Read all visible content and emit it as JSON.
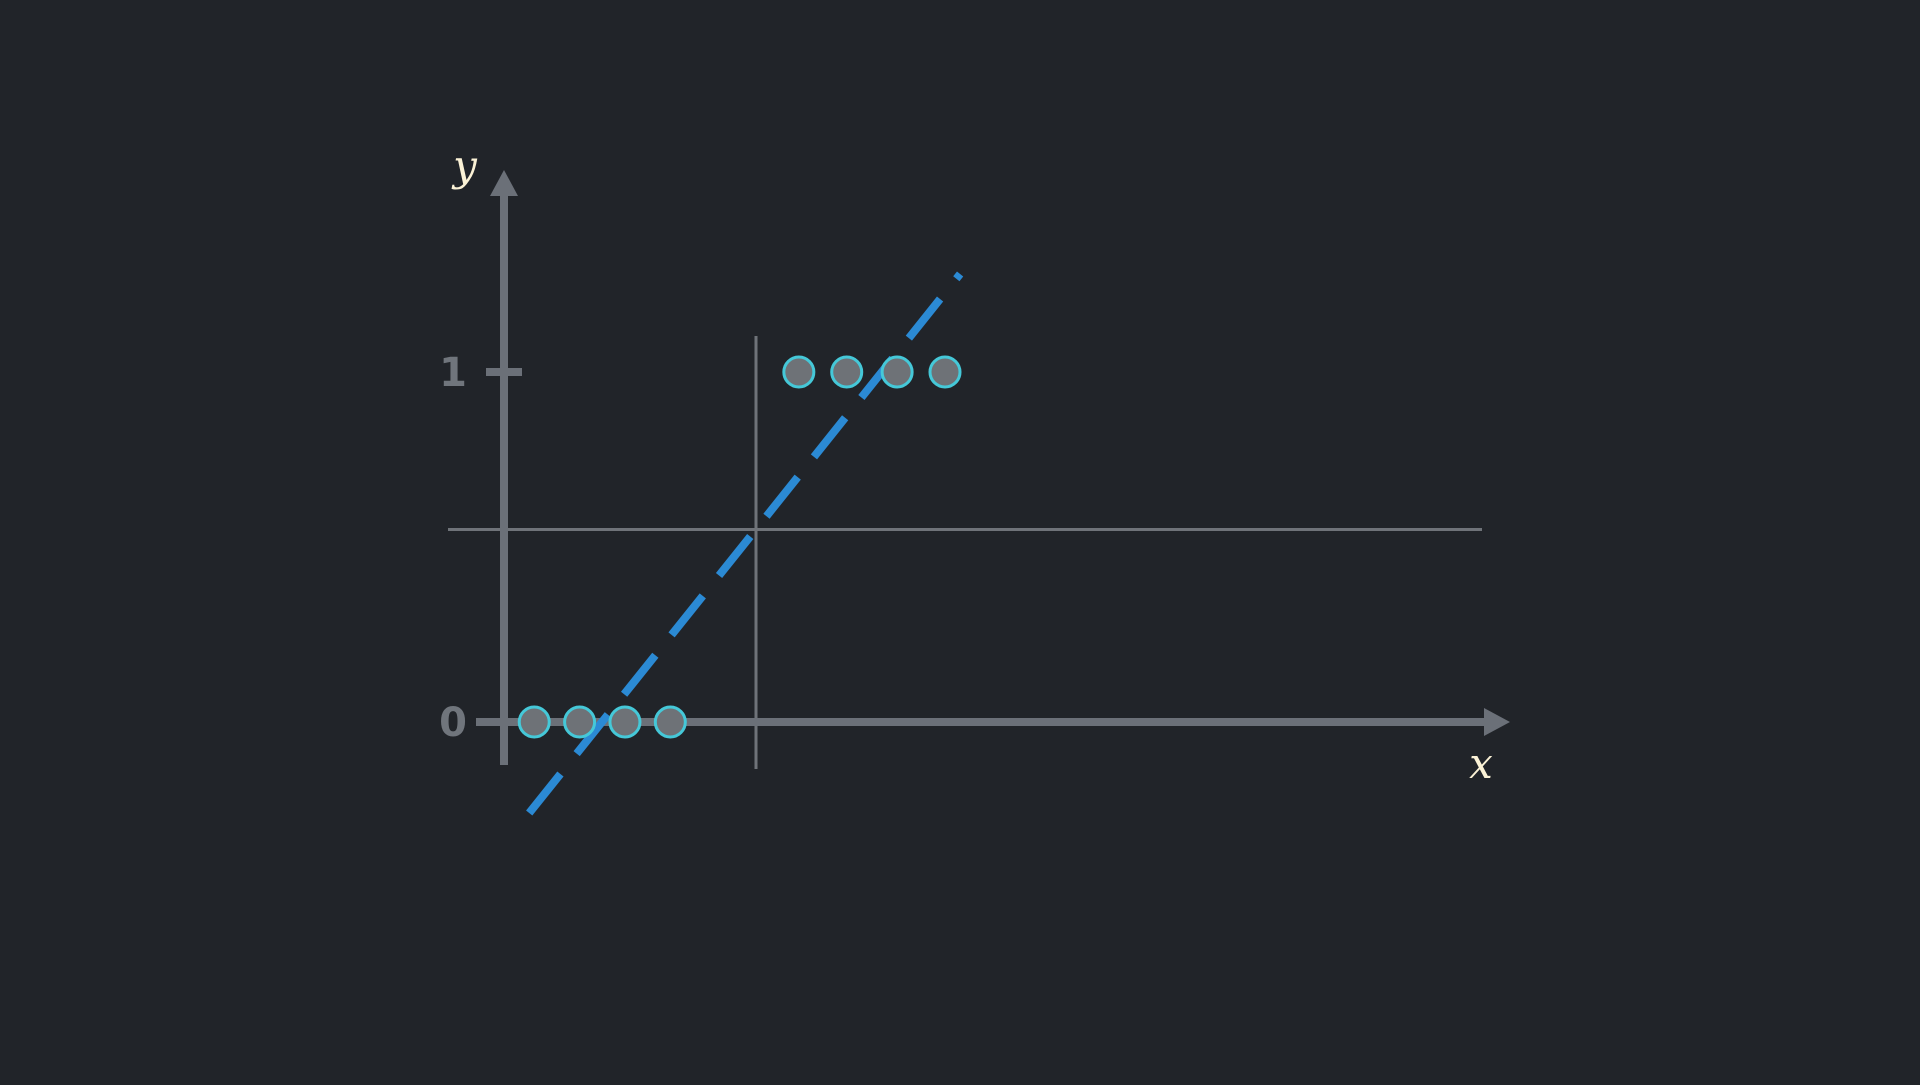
{
  "colors": {
    "background": "#212429",
    "axis": "#6b7078",
    "guide": "#6f7379",
    "tick_label": "#70757c",
    "axis_title": "#fbf2d6",
    "fit_line": "#2b8ad4",
    "marker_fill": "#6e7277",
    "marker_stroke": "#45c8d8"
  },
  "chart_data": {
    "type": "scatter",
    "title": "",
    "xlabel": "x",
    "ylabel": "y",
    "xlim": [
      0,
      10
    ],
    "ylim": [
      -0.25,
      1.55
    ],
    "y_ticks": [
      {
        "value": 0,
        "label": "0"
      },
      {
        "value": 1,
        "label": "1"
      }
    ],
    "grid": false,
    "legend": "none",
    "threshold": {
      "x": 1.0,
      "y": 0.55
    },
    "points": [
      {
        "x": 0.12,
        "y": 0
      },
      {
        "x": 0.3,
        "y": 0
      },
      {
        "x": 0.48,
        "y": 0
      },
      {
        "x": 0.66,
        "y": 0
      },
      {
        "x": 1.17,
        "y": 1
      },
      {
        "x": 1.36,
        "y": 1
      },
      {
        "x": 1.56,
        "y": 1
      },
      {
        "x": 1.75,
        "y": 1
      }
    ],
    "fit_line": {
      "style": "dashed",
      "x": [
        0.1,
        1.81
      ],
      "y": [
        -0.26,
        1.28
      ]
    }
  }
}
